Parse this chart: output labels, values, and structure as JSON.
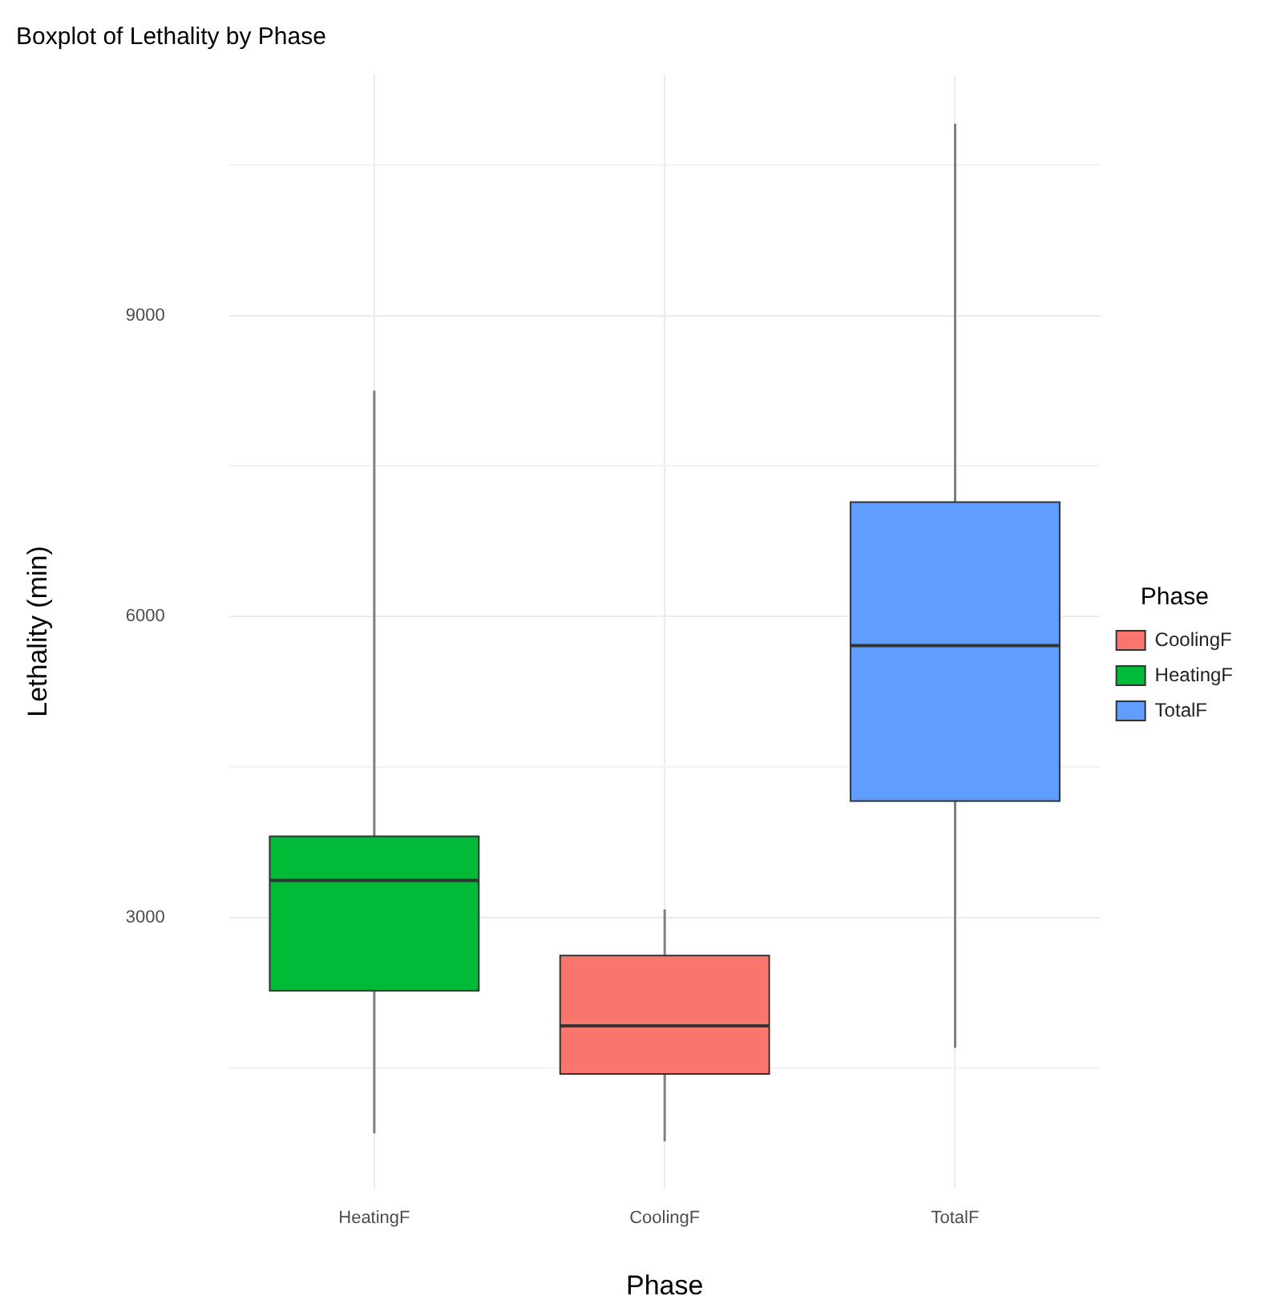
{
  "chart_data": {
    "type": "box",
    "title": "Boxplot of Lethality by Phase",
    "xlabel": "Phase",
    "ylabel": "Lethality (min)",
    "legend_title": "Phase",
    "categories": [
      "HeatingF",
      "CoolingF",
      "TotalF"
    ],
    "ylim": [
      300,
      11400
    ],
    "yticks": [
      {
        "value": 1500,
        "label": null
      },
      3000,
      {
        "value": 4500,
        "label": null
      },
      6000,
      {
        "value": 7500,
        "label": null
      },
      9000,
      {
        "value": 10500,
        "label": null
      }
    ],
    "grid": true,
    "legend": "right",
    "series": [
      {
        "name": "CoolingF",
        "color": "#f8766d",
        "boxes": [
          null,
          {
            "low": 770,
            "q1": 1440,
            "median": 1920,
            "q3": 2620,
            "high": 3080
          },
          null
        ]
      },
      {
        "name": "HeatingF",
        "color": "#00ba38",
        "boxes": [
          {
            "low": 850,
            "q1": 2270,
            "median": 3370,
            "q3": 3810,
            "high": 8250
          },
          null,
          null
        ]
      },
      {
        "name": "TotalF",
        "color": "#619cff",
        "boxes": [
          null,
          null,
          {
            "low": 1700,
            "q1": 4160,
            "median": 5710,
            "q3": 7140,
            "high": 10910
          }
        ]
      }
    ]
  }
}
